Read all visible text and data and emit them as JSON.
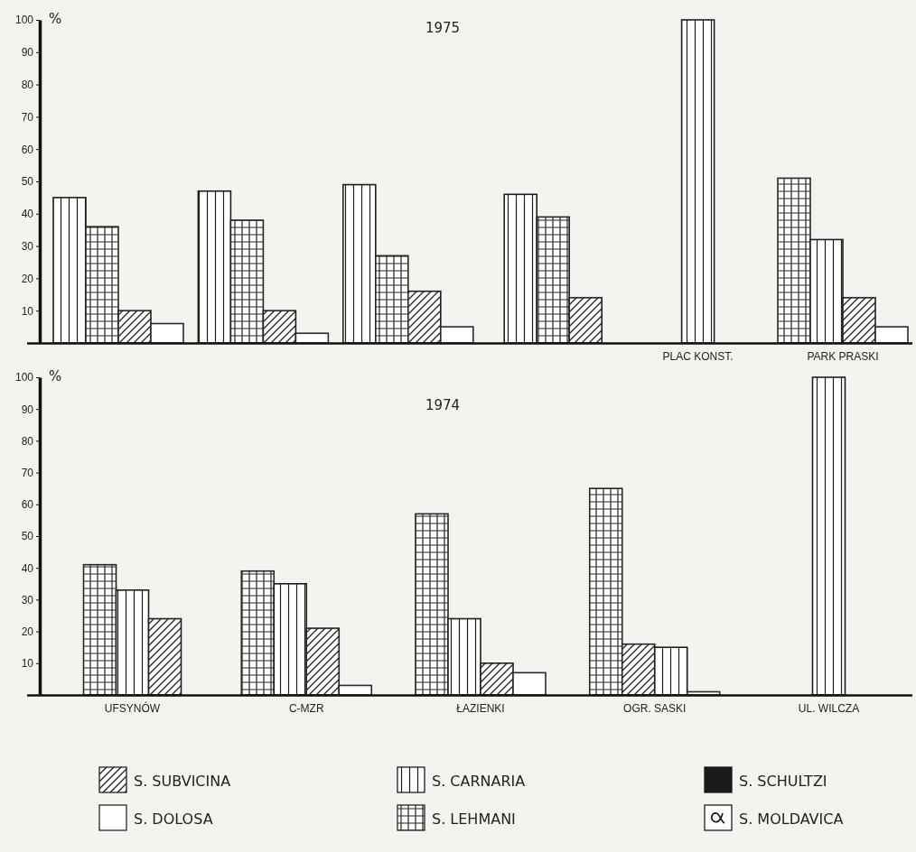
{
  "chart_data": [
    {
      "type": "bar",
      "title": "1975",
      "ylabel": "%",
      "categories": [
        null,
        null,
        null,
        null,
        "PLAC KONST.",
        "PARK PRASKI"
      ],
      "series": [
        {
          "color": "#222222",
          "values": [
            10,
            10,
            16,
            14,
            null,
            14
          ]
        },
        {
          "color": "#2a2a2a",
          "values": [
            6,
            3,
            5,
            null,
            null,
            5
          ]
        },
        {
          "color": "#1e1e1e",
          "values": [
            45,
            47,
            49,
            46,
            100,
            32
          ]
        },
        {
          "color": "#262626",
          "values": [
            36,
            38,
            27,
            39,
            null,
            51
          ]
        }
      ],
      "ylim": [
        0,
        100
      ],
      "yticks": [
        10,
        20,
        30,
        40,
        50,
        60,
        70,
        80,
        90,
        100
      ]
    },
    {
      "type": "bar",
      "title": "1974",
      "ylabel": "%",
      "categories": [
        "UFSYNÓW",
        "C-MZR",
        "ŁAZIENKI",
        "OGR. SASKI",
        "UL. WILCZA"
      ],
      "series": [
        {
          "name": "S. SUBVICINA",
          "color": "#222222",
          "values": [
            24,
            21,
            10,
            16,
            null
          ]
        },
        {
          "name": "S. DOLOSA",
          "color": "#2a2a2a",
          "values": [
            null,
            3,
            7,
            1,
            null
          ]
        },
        {
          "name": "S. CARNARIA",
          "color": "#1e1e1e",
          "values": [
            33,
            35,
            24,
            15,
            100
          ]
        },
        {
          "name": "S. LEHMANI",
          "color": "#262626",
          "values": [
            41,
            39,
            57,
            65,
            null
          ]
        },
        {
          "name": "S. SCHULTZI",
          "color": "#1a1a1a",
          "values": [
            null,
            null,
            null,
            null,
            null
          ]
        },
        {
          "name": "S. MOLDAVICA",
          "color": "#202020",
          "values": [
            null,
            null,
            null,
            null,
            null
          ]
        }
      ],
      "ylim": [
        0,
        100
      ],
      "yticks": [
        10,
        20,
        30,
        40,
        50,
        60,
        70,
        80,
        90,
        100
      ],
      "legend": "bottom"
    }
  ]
}
